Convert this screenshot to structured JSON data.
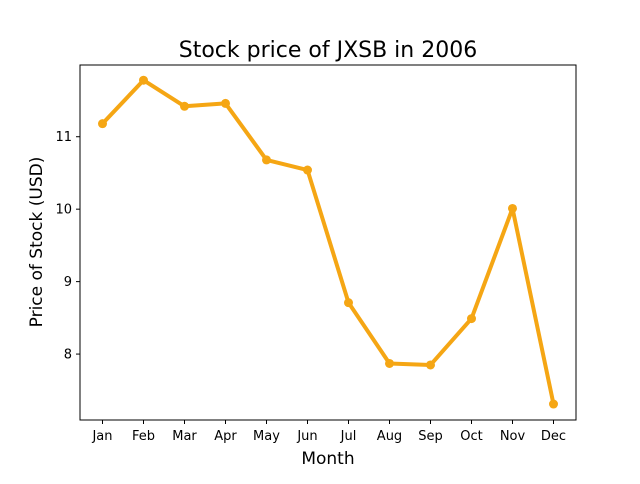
{
  "chart_data": {
    "type": "line",
    "title": "Stock price of JXSB in 2006",
    "xlabel": "Month",
    "ylabel": "Price of Stock (USD)",
    "categories": [
      "Jan",
      "Feb",
      "Mar",
      "Apr",
      "May",
      "Jun",
      "Jul",
      "Aug",
      "Sep",
      "Oct",
      "Nov",
      "Dec"
    ],
    "series": [
      {
        "values": [
          11.18,
          11.78,
          11.42,
          11.46,
          10.68,
          10.54,
          8.71,
          7.87,
          7.85,
          8.49,
          10.01,
          7.31
        ],
        "color": "#f5a614"
      }
    ],
    "ylim": [
      7.09,
      11.99
    ],
    "yticks": [
      8,
      9,
      10,
      11
    ],
    "grid": false,
    "legend": "none"
  }
}
